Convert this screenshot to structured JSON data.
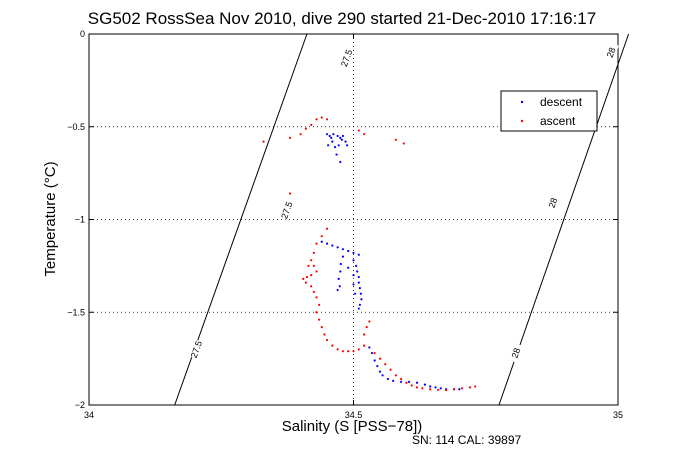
{
  "chart_data": {
    "type": "scatter",
    "title": "SG502 RossSea Nov 2010, dive 290 started 21-Dec-2010 17:16:17",
    "xlabel": "Salinity (S [PSS−78])",
    "ylabel": "Temperature (°C)",
    "xlim": [
      34,
      35
    ],
    "ylim": [
      -2,
      0
    ],
    "x_ticks": [
      34,
      34.5,
      35
    ],
    "x_tick_labels": [
      "34",
      "34.5",
      "35"
    ],
    "y_ticks": [
      -2,
      -1.5,
      -1,
      -0.5,
      0
    ],
    "y_tick_labels": [
      "−2",
      "−1.5",
      "−1",
      "−0.5",
      "0"
    ],
    "grid": true,
    "legend_position": "top-right",
    "footer": "SN: 114  CAL: 39897",
    "isopycnals": [
      {
        "label": "27.5",
        "points": [
          [
            34.412,
            0
          ],
          [
            34.162,
            -2
          ]
        ],
        "label_positions": [
          [
            34.487,
            -0.13
          ],
          [
            34.374,
            -0.95
          ],
          [
            34.203,
            -1.7
          ]
        ]
      },
      {
        "label": "28",
        "points": [
          [
            35.02,
            0
          ],
          [
            34.775,
            -2
          ]
        ],
        "label_positions": [
          [
            34.987,
            -0.1
          ],
          [
            34.877,
            -0.91
          ],
          [
            34.807,
            -1.72
          ]
        ]
      }
    ],
    "series": [
      {
        "name": "descent",
        "color": "#0000ff",
        "points": [
          [
            34.45,
            -0.54
          ],
          [
            34.455,
            -0.55
          ],
          [
            34.462,
            -0.54
          ],
          [
            34.47,
            -0.55
          ],
          [
            34.475,
            -0.56
          ],
          [
            34.48,
            -0.55
          ],
          [
            34.46,
            -0.58
          ],
          [
            34.465,
            -0.61
          ],
          [
            34.472,
            -0.6
          ],
          [
            34.468,
            -0.65
          ],
          [
            34.475,
            -0.69
          ],
          [
            34.478,
            -0.57
          ],
          [
            34.485,
            -0.58
          ],
          [
            34.488,
            -0.6
          ],
          [
            34.458,
            -0.56
          ],
          [
            34.452,
            -0.6
          ],
          [
            34.44,
            -1.12
          ],
          [
            34.45,
            -1.13
          ],
          [
            34.46,
            -1.14
          ],
          [
            34.47,
            -1.15
          ],
          [
            34.48,
            -1.16
          ],
          [
            34.49,
            -1.17
          ],
          [
            34.5,
            -1.18
          ],
          [
            34.51,
            -1.19
          ],
          [
            34.5,
            -1.22
          ],
          [
            34.505,
            -1.25
          ],
          [
            34.507,
            -1.28
          ],
          [
            34.51,
            -1.31
          ],
          [
            34.51,
            -1.34
          ],
          [
            34.512,
            -1.37
          ],
          [
            34.514,
            -1.4
          ],
          [
            34.515,
            -1.43
          ],
          [
            34.512,
            -1.46
          ],
          [
            34.51,
            -1.48
          ],
          [
            34.48,
            -1.2
          ],
          [
            34.476,
            -1.24
          ],
          [
            34.475,
            -1.28
          ],
          [
            34.472,
            -1.32
          ],
          [
            34.474,
            -1.36
          ],
          [
            34.47,
            -1.38
          ],
          [
            34.49,
            -1.26
          ],
          [
            34.5,
            -1.3
          ],
          [
            34.5,
            -1.35
          ],
          [
            34.503,
            -1.4
          ],
          [
            34.53,
            -1.69
          ],
          [
            34.535,
            -1.72
          ],
          [
            34.54,
            -1.76
          ],
          [
            34.545,
            -1.79
          ],
          [
            34.55,
            -1.82
          ],
          [
            34.555,
            -1.84
          ],
          [
            34.565,
            -1.86
          ],
          [
            34.575,
            -1.87
          ],
          [
            34.59,
            -1.875
          ],
          [
            34.605,
            -1.875
          ],
          [
            34.62,
            -1.88
          ],
          [
            34.635,
            -1.89
          ],
          [
            34.645,
            -1.9
          ],
          [
            34.655,
            -1.905
          ],
          [
            34.665,
            -1.91
          ],
          [
            34.675,
            -1.915
          ],
          [
            34.69,
            -1.915
          ],
          [
            34.7,
            -1.915
          ]
        ]
      },
      {
        "name": "ascent",
        "color": "#ff0000",
        "points": [
          [
            34.43,
            -0.46
          ],
          [
            34.44,
            -0.45
          ],
          [
            34.45,
            -0.46
          ],
          [
            34.42,
            -0.49
          ],
          [
            34.41,
            -0.51
          ],
          [
            34.4,
            -0.54
          ],
          [
            34.38,
            -0.56
          ],
          [
            34.33,
            -0.58
          ],
          [
            34.51,
            -0.52
          ],
          [
            34.52,
            -0.54
          ],
          [
            34.58,
            -0.57
          ],
          [
            34.595,
            -0.59
          ],
          [
            34.38,
            -0.86
          ],
          [
            34.45,
            -1.05
          ],
          [
            34.44,
            -1.09
          ],
          [
            34.43,
            -1.13
          ],
          [
            34.425,
            -1.18
          ],
          [
            34.42,
            -1.22
          ],
          [
            34.415,
            -1.25
          ],
          [
            34.425,
            -1.25
          ],
          [
            34.43,
            -1.28
          ],
          [
            34.42,
            -1.3
          ],
          [
            34.412,
            -1.31
          ],
          [
            34.405,
            -1.32
          ],
          [
            34.41,
            -1.34
          ],
          [
            34.42,
            -1.36
          ],
          [
            34.425,
            -1.39
          ],
          [
            34.43,
            -1.42
          ],
          [
            34.435,
            -1.46
          ],
          [
            34.43,
            -1.5
          ],
          [
            34.435,
            -1.54
          ],
          [
            34.44,
            -1.58
          ],
          [
            34.445,
            -1.62
          ],
          [
            34.45,
            -1.65
          ],
          [
            34.46,
            -1.68
          ],
          [
            34.47,
            -1.7
          ],
          [
            34.48,
            -1.71
          ],
          [
            34.49,
            -1.71
          ],
          [
            34.5,
            -1.71
          ],
          [
            34.51,
            -1.7
          ],
          [
            34.52,
            -1.68
          ],
          [
            34.52,
            -1.62
          ],
          [
            34.525,
            -1.58
          ],
          [
            34.53,
            -1.55
          ],
          [
            34.54,
            -1.72
          ],
          [
            34.55,
            -1.75
          ],
          [
            34.56,
            -1.78
          ],
          [
            34.57,
            -1.81
          ],
          [
            34.58,
            -1.84
          ],
          [
            34.59,
            -1.86
          ],
          [
            34.6,
            -1.88
          ],
          [
            34.61,
            -1.895
          ],
          [
            34.62,
            -1.905
          ],
          [
            34.63,
            -1.91
          ],
          [
            34.645,
            -1.915
          ],
          [
            34.66,
            -1.918
          ],
          [
            34.675,
            -1.92
          ],
          [
            34.69,
            -1.915
          ],
          [
            34.705,
            -1.91
          ],
          [
            34.72,
            -1.905
          ],
          [
            34.73,
            -1.9
          ]
        ]
      }
    ]
  }
}
